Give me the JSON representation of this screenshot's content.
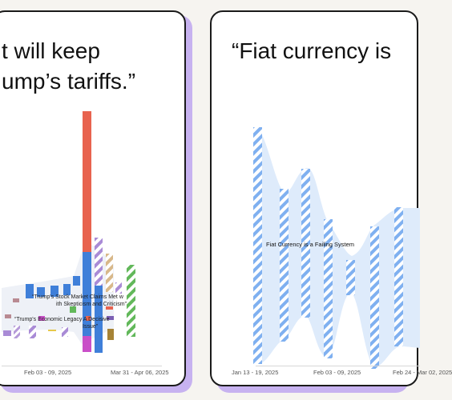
{
  "cards": [
    {
      "quote_lines": [
        "t will keep",
        "ump’s tariffs.”"
      ],
      "x_ticks": [
        "Feb 03 - 09, 2025",
        "Mar 31 - Apr 06, 2025"
      ],
      "topic_labels": [
        "“Trump's Stock Market Claims Met w",
        "ith Skepticism and Criticism”",
        "“Trump's Economic Legacy A Decisive",
        "Issue”"
      ]
    },
    {
      "quote_lines": [
        "“Fiat currency is"
      ],
      "x_ticks": [
        "Jan 13 - 19, 2025",
        "Feb 03 - 09, 2025",
        "Feb 24 - Mar 02, 2025"
      ],
      "series_label": "Fiat Currency is a Failing System"
    }
  ],
  "colors": {
    "card_shadow": "#c7b2f0",
    "red": "#e8634f",
    "blue": "#3f7fd9",
    "purple": "#a98bd6",
    "tan": "#d8b88a",
    "green": "#62b85a",
    "magenta": "#c94fc8",
    "light_blue": "#7fb0f0",
    "stream_fill": "#deebfb"
  }
}
